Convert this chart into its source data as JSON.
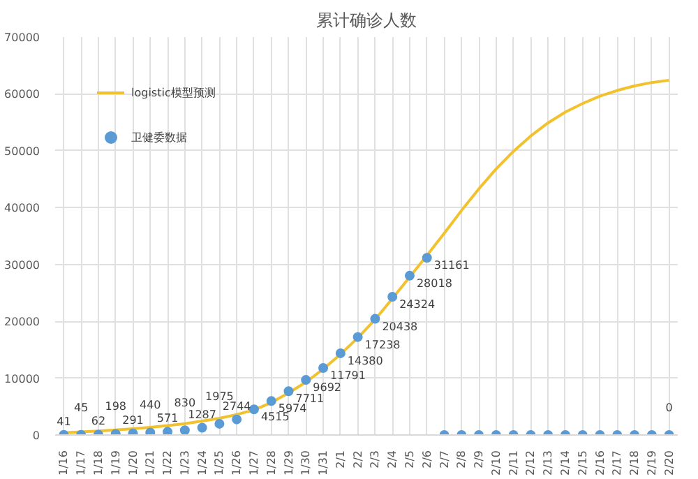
{
  "chart_data": {
    "type": "line",
    "title": "累计确诊人数",
    "categories": [
      "1/16",
      "1/17",
      "1/18",
      "1/19",
      "1/20",
      "1/21",
      "1/22",
      "1/23",
      "1/24",
      "1/25",
      "1/26",
      "1/27",
      "1/28",
      "1/29",
      "1/30",
      "1/31",
      "2/1",
      "2/2",
      "2/3",
      "2/4",
      "2/5",
      "2/6",
      "2/7",
      "2/8",
      "2/9",
      "2/10",
      "2/11",
      "2/12",
      "2/13",
      "2/14",
      "2/15",
      "2/16",
      "2/17",
      "2/18",
      "2/19",
      "2/20"
    ],
    "series": [
      {
        "name": "logistic模型预测",
        "color": "#f2c12e",
        "values": [
          400,
          550,
          700,
          900,
          1100,
          1350,
          1650,
          2000,
          2450,
          2950,
          3600,
          4400,
          5700,
          7400,
          9300,
          11600,
          14200,
          17100,
          20300,
          24000,
          27800,
          31600,
          35500,
          39500,
          43300,
          46800,
          49900,
          52600,
          54900,
          56800,
          58300,
          59600,
          60600,
          61400,
          62000,
          62400
        ]
      },
      {
        "name": "卫健委数据",
        "type": "scatter",
        "marker": "circle",
        "color": "#5b9bd5",
        "values": [
          41,
          45,
          62,
          198,
          291,
          440,
          571,
          830,
          1287,
          1975,
          2744,
          4515,
          5974,
          7711,
          9692,
          11791,
          14380,
          17238,
          20438,
          24324,
          28018,
          31161,
          0,
          0,
          0,
          0,
          0,
          0,
          0,
          0,
          0,
          0,
          0,
          0,
          0,
          0
        ],
        "value_labels": [
          "41",
          "45",
          "62",
          "198",
          "291",
          "440",
          "571",
          "830",
          "1287",
          "1975",
          "2744",
          "4515",
          "5974",
          "7711",
          "9692",
          "11791",
          "14380",
          "17238",
          "20438",
          "24324",
          "28018",
          "31161",
          null,
          null,
          null,
          null,
          null,
          null,
          null,
          null,
          null,
          null,
          null,
          null,
          null,
          "0"
        ]
      }
    ],
    "ylim": [
      0,
      70000
    ],
    "yticks": [
      0,
      10000,
      20000,
      30000,
      40000,
      50000,
      60000,
      70000
    ],
    "grid": true,
    "legend": "top left"
  }
}
